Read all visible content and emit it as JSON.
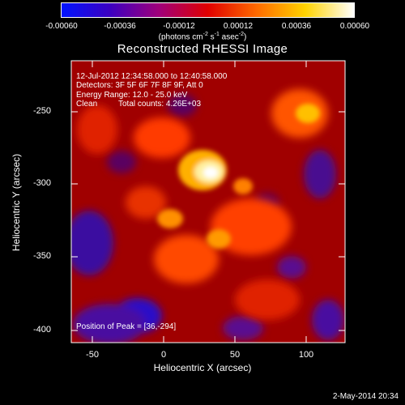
{
  "colorbar": {
    "gradient": [
      "#0014ff",
      "#3c00c0",
      "#a0007a",
      "#e00000",
      "#ff6a00",
      "#ffd200",
      "#ffffff"
    ],
    "tick_labels": [
      "-0.00060",
      "-0.00036",
      "-0.00012",
      "0.00012",
      "0.00036",
      "0.00060"
    ],
    "units_main": "(photons cm",
    "units_sup1": "-2",
    "units_mid": " s",
    "units_sup2": "-1",
    "units_mid2": " asec",
    "units_sup3": "-2",
    "units_end": ")"
  },
  "title": "Reconstructed RHESSI Image",
  "info": {
    "line1": "12-Jul-2012 12:34:58.000 to 12:40:58.000",
    "line2": "Detectors: 3F 5F 6F 7F 8F 9F, Att 0",
    "line3": "Energy Range: 12.0 - 25.0 keV",
    "line4_a": "Clean",
    "line4_b": "Total counts: 4.26E+03",
    "peak": "Position of Peak = [36,-294]"
  },
  "axes": {
    "xlabel": "Heliocentric X (arcsec)",
    "ylabel": "Heliocentric Y (arcsec)",
    "x_ticks": [
      "-50",
      "0",
      "50",
      "100"
    ],
    "y_ticks": [
      "-250",
      "-300",
      "-350",
      "-400"
    ]
  },
  "timestamp": "2-May-2014 20:34"
}
